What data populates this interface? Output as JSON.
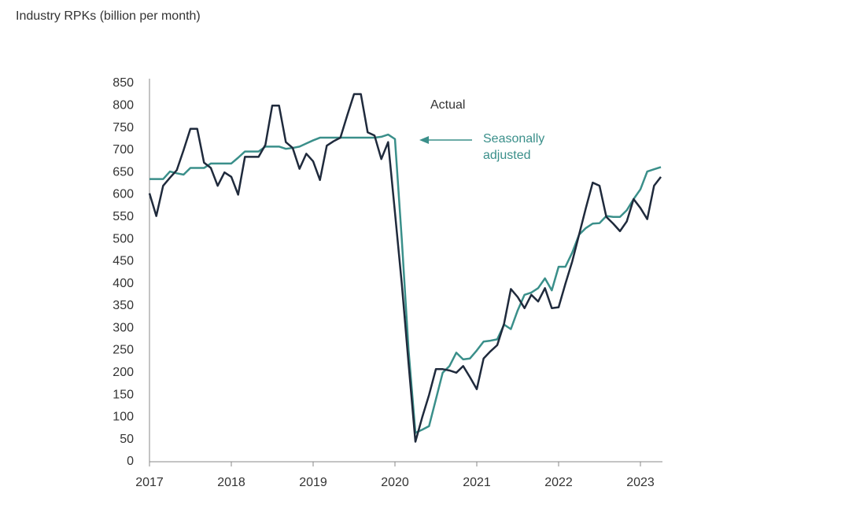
{
  "chart_data": {
    "type": "line",
    "title": "Industry RPKs (billion per month)",
    "annotations": [
      {
        "lines": [
          "Actual"
        ],
        "color": "#333333"
      },
      {
        "lines": [
          "Seasonally",
          "adjusted"
        ],
        "color": "#3a8f8a"
      }
    ],
    "x": [
      "2017-01",
      "2017-02",
      "2017-03",
      "2017-04",
      "2017-05",
      "2017-06",
      "2017-07",
      "2017-08",
      "2017-09",
      "2017-10",
      "2017-11",
      "2017-12",
      "2018-01",
      "2018-02",
      "2018-03",
      "2018-04",
      "2018-05",
      "2018-06",
      "2018-07",
      "2018-08",
      "2018-09",
      "2018-10",
      "2018-11",
      "2018-12",
      "2019-01",
      "2019-02",
      "2019-03",
      "2019-04",
      "2019-05",
      "2019-06",
      "2019-07",
      "2019-08",
      "2019-09",
      "2019-10",
      "2019-11",
      "2019-12",
      "2020-01",
      "2020-02",
      "2020-03",
      "2020-04",
      "2020-05",
      "2020-06",
      "2020-07",
      "2020-08",
      "2020-09",
      "2020-10",
      "2020-11",
      "2020-12",
      "2021-01",
      "2021-02",
      "2021-03",
      "2021-04",
      "2021-05",
      "2021-06",
      "2021-07",
      "2021-08",
      "2021-09",
      "2021-10",
      "2021-11",
      "2021-12",
      "2022-01",
      "2022-02",
      "2022-03",
      "2022-04",
      "2022-05",
      "2022-06",
      "2022-07",
      "2022-08",
      "2022-09",
      "2022-10",
      "2022-11",
      "2022-12",
      "2023-01",
      "2023-02",
      "2023-03",
      "2023-04"
    ],
    "series": [
      {
        "color": "#1f2a3c",
        "values": [
          603,
          552,
          620,
          638,
          655,
          700,
          748,
          748,
          672,
          660,
          620,
          650,
          640,
          600,
          685,
          685,
          685,
          712,
          800,
          800,
          718,
          705,
          658,
          692,
          675,
          633,
          710,
          720,
          728,
          778,
          826,
          826,
          740,
          733,
          680,
          718,
          560,
          400,
          220,
          45,
          100,
          150,
          208,
          208,
          205,
          200,
          215,
          190,
          163,
          232,
          248,
          262,
          310,
          388,
          370,
          345,
          375,
          360,
          390,
          345,
          347,
          400,
          450,
          510,
          570,
          627,
          620,
          550,
          535,
          518,
          540,
          590,
          570,
          545,
          620,
          640
        ]
      },
      {
        "color": "#3a8f8a",
        "values": [
          635,
          635,
          635,
          652,
          648,
          645,
          660,
          660,
          660,
          670,
          670,
          670,
          670,
          683,
          697,
          697,
          697,
          708,
          708,
          708,
          703,
          705,
          708,
          715,
          722,
          728,
          728,
          728,
          728,
          728,
          728,
          728,
          728,
          728,
          730,
          735,
          725,
          500,
          250,
          65,
          72,
          80,
          140,
          200,
          215,
          245,
          230,
          232,
          250,
          270,
          272,
          275,
          308,
          298,
          340,
          375,
          380,
          390,
          412,
          385,
          438,
          438,
          470,
          510,
          525,
          535,
          536,
          552,
          550,
          550,
          565,
          590,
          612,
          652,
          657,
          662
        ]
      }
    ],
    "xlim": [
      "2017-01",
      "2023-04"
    ],
    "xticks": [
      {
        "value": "2017-01",
        "label": "2017"
      },
      {
        "value": "2018-01",
        "label": "2018"
      },
      {
        "value": "2019-01",
        "label": "2019"
      },
      {
        "value": "2020-01",
        "label": "2020"
      },
      {
        "value": "2021-01",
        "label": "2021"
      },
      {
        "value": "2022-01",
        "label": "2022"
      },
      {
        "value": "2023-01",
        "label": "2023"
      }
    ],
    "ylim": [
      0,
      850
    ],
    "yticks": [
      0,
      50,
      100,
      150,
      200,
      250,
      300,
      350,
      400,
      450,
      500,
      550,
      600,
      650,
      700,
      750,
      800,
      850
    ],
    "grid": false
  }
}
